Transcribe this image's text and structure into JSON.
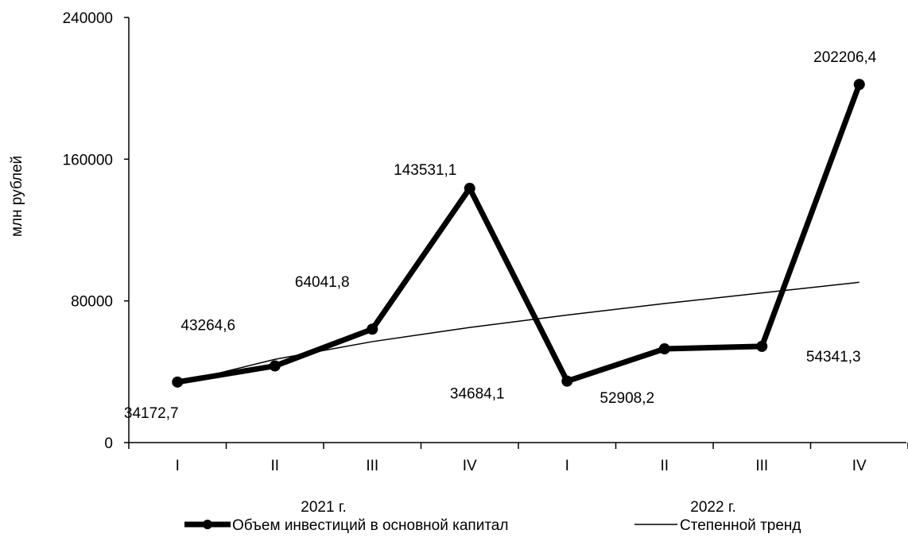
{
  "chart_data": {
    "type": "line",
    "title": "",
    "ylabel": "млн рублей",
    "xlabel": "",
    "ylim": [
      0,
      240000
    ],
    "yticks": [
      0,
      80000,
      160000,
      240000
    ],
    "ytick_labels": [
      "0",
      "80000",
      "160000",
      "240000"
    ],
    "categories": [
      "I",
      "II",
      "III",
      "IV",
      "I",
      "II",
      "III",
      "IV"
    ],
    "groups": [
      {
        "label": "2021 г.",
        "span": [
          0,
          3
        ]
      },
      {
        "label": "2022 г.",
        "span": [
          4,
          7
        ]
      }
    ],
    "series": [
      {
        "name": "Объем инвестиций в основной капитал",
        "values": [
          34172.7,
          43264.6,
          64041.8,
          143531.1,
          34684.1,
          52908.2,
          54341.3,
          202206.4
        ],
        "labels": [
          "34172,7",
          "43264,6",
          "64041,8",
          "143531,1",
          "34684,1",
          "52908,2",
          "54341,3",
          "202206,4"
        ],
        "color": "#000000",
        "marker": "circle"
      },
      {
        "name": "Степенной тренд",
        "values": [
          33500,
          47000,
          57000,
          65000,
          72000,
          78500,
          84500,
          90500
        ],
        "color": "#000000"
      }
    ],
    "grid": false,
    "legend_position": "bottom"
  }
}
